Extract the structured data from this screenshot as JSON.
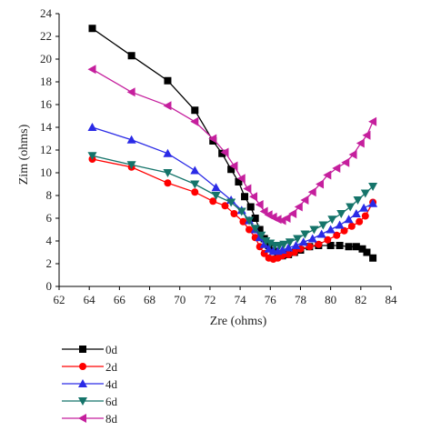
{
  "chart_data": {
    "type": "line",
    "xlabel": "Zre (ohms)",
    "ylabel": "Zim (ohms)",
    "xlim": [
      62,
      84
    ],
    "ylim": [
      0,
      24
    ],
    "xticks": [
      62,
      64,
      66,
      68,
      70,
      72,
      74,
      76,
      78,
      80,
      82,
      84
    ],
    "yticks": [
      0,
      2,
      4,
      6,
      8,
      10,
      12,
      14,
      16,
      18,
      20,
      22,
      24
    ],
    "grid": false,
    "legend_position": "bottom-left",
    "series": [
      {
        "name": "0d",
        "color": "#000000",
        "marker": "square",
        "points": [
          [
            64.2,
            22.7
          ],
          [
            66.8,
            20.3
          ],
          [
            69.2,
            18.1
          ],
          [
            71.0,
            15.5
          ],
          [
            72.2,
            12.8
          ],
          [
            72.8,
            11.7
          ],
          [
            73.4,
            10.3
          ],
          [
            73.9,
            9.2
          ],
          [
            74.3,
            7.9
          ],
          [
            74.7,
            7.0
          ],
          [
            75.0,
            6.0
          ],
          [
            75.3,
            5.0
          ],
          [
            75.6,
            4.2
          ],
          [
            75.9,
            3.6
          ],
          [
            76.2,
            3.1
          ],
          [
            76.5,
            2.8
          ],
          [
            76.8,
            2.7
          ],
          [
            77.2,
            2.8
          ],
          [
            77.6,
            3.0
          ],
          [
            78.0,
            3.2
          ],
          [
            78.6,
            3.5
          ],
          [
            79.2,
            3.6
          ],
          [
            80.0,
            3.6
          ],
          [
            80.6,
            3.6
          ],
          [
            81.2,
            3.5
          ],
          [
            81.7,
            3.5
          ],
          [
            82.1,
            3.3
          ],
          [
            82.4,
            3.0
          ],
          [
            82.8,
            2.5
          ]
        ]
      },
      {
        "name": "2d",
        "color": "#ff0000",
        "marker": "circle",
        "points": [
          [
            64.2,
            11.2
          ],
          [
            66.8,
            10.5
          ],
          [
            69.2,
            9.1
          ],
          [
            71.0,
            8.3
          ],
          [
            72.2,
            7.5
          ],
          [
            73.0,
            7.1
          ],
          [
            73.6,
            6.4
          ],
          [
            74.2,
            5.7
          ],
          [
            74.6,
            5.0
          ],
          [
            75.0,
            4.3
          ],
          [
            75.3,
            3.5
          ],
          [
            75.6,
            2.9
          ],
          [
            75.9,
            2.5
          ],
          [
            76.2,
            2.4
          ],
          [
            76.5,
            2.5
          ],
          [
            76.8,
            2.7
          ],
          [
            77.2,
            2.8
          ],
          [
            77.6,
            3.0
          ],
          [
            78.0,
            3.3
          ],
          [
            78.6,
            3.5
          ],
          [
            79.2,
            3.7
          ],
          [
            79.8,
            4.1
          ],
          [
            80.4,
            4.5
          ],
          [
            80.9,
            4.9
          ],
          [
            81.4,
            5.3
          ],
          [
            81.9,
            5.7
          ],
          [
            82.3,
            6.2
          ],
          [
            82.8,
            7.4
          ]
        ]
      },
      {
        "name": "4d",
        "color": "#2a2ae6",
        "marker": "triangle-up",
        "points": [
          [
            64.2,
            14.0
          ],
          [
            66.8,
            12.9
          ],
          [
            69.2,
            11.7
          ],
          [
            71.0,
            10.2
          ],
          [
            72.4,
            8.7
          ],
          [
            73.4,
            7.6
          ],
          [
            74.1,
            6.7
          ],
          [
            74.6,
            5.8
          ],
          [
            75.0,
            5.0
          ],
          [
            75.3,
            4.3
          ],
          [
            75.6,
            3.7
          ],
          [
            75.9,
            3.3
          ],
          [
            76.2,
            3.1
          ],
          [
            76.5,
            3.1
          ],
          [
            76.8,
            3.2
          ],
          [
            77.2,
            3.4
          ],
          [
            77.7,
            3.6
          ],
          [
            78.2,
            3.9
          ],
          [
            78.8,
            4.2
          ],
          [
            79.4,
            4.6
          ],
          [
            80.0,
            5.0
          ],
          [
            80.6,
            5.4
          ],
          [
            81.2,
            5.9
          ],
          [
            81.7,
            6.4
          ],
          [
            82.2,
            6.9
          ],
          [
            82.8,
            7.3
          ]
        ]
      },
      {
        "name": "6d",
        "color": "#15746a",
        "marker": "triangle-down",
        "points": [
          [
            64.2,
            11.5
          ],
          [
            66.8,
            10.7
          ],
          [
            69.2,
            10.0
          ],
          [
            71.0,
            9.0
          ],
          [
            72.4,
            8.0
          ],
          [
            73.4,
            7.4
          ],
          [
            74.1,
            6.6
          ],
          [
            74.6,
            5.8
          ],
          [
            75.0,
            5.1
          ],
          [
            75.4,
            4.5
          ],
          [
            75.7,
            4.0
          ],
          [
            76.0,
            3.8
          ],
          [
            76.3,
            3.6
          ],
          [
            76.6,
            3.6
          ],
          [
            76.9,
            3.7
          ],
          [
            77.3,
            3.9
          ],
          [
            77.8,
            4.2
          ],
          [
            78.3,
            4.6
          ],
          [
            78.9,
            5.0
          ],
          [
            79.5,
            5.4
          ],
          [
            80.1,
            5.9
          ],
          [
            80.7,
            6.4
          ],
          [
            81.3,
            7.0
          ],
          [
            81.8,
            7.6
          ],
          [
            82.3,
            8.2
          ],
          [
            82.8,
            8.8
          ]
        ]
      },
      {
        "name": "8d",
        "color": "#c51f9d",
        "marker": "triangle-left",
        "points": [
          [
            64.2,
            19.1
          ],
          [
            66.8,
            17.1
          ],
          [
            69.2,
            15.9
          ],
          [
            71.0,
            14.5
          ],
          [
            72.2,
            13.0
          ],
          [
            73.0,
            11.8
          ],
          [
            73.6,
            10.6
          ],
          [
            74.1,
            9.5
          ],
          [
            74.5,
            8.6
          ],
          [
            74.9,
            7.9
          ],
          [
            75.3,
            7.2
          ],
          [
            75.6,
            6.6
          ],
          [
            75.9,
            6.3
          ],
          [
            76.2,
            6.1
          ],
          [
            76.5,
            5.9
          ],
          [
            76.8,
            5.8
          ],
          [
            77.1,
            6.0
          ],
          [
            77.5,
            6.4
          ],
          [
            77.9,
            7.0
          ],
          [
            78.3,
            7.6
          ],
          [
            78.8,
            8.3
          ],
          [
            79.3,
            9.0
          ],
          [
            79.8,
            9.8
          ],
          [
            80.4,
            10.4
          ],
          [
            81.0,
            10.9
          ],
          [
            81.5,
            11.6
          ],
          [
            82.0,
            12.6
          ],
          [
            82.4,
            13.3
          ],
          [
            82.8,
            14.5
          ]
        ]
      }
    ]
  }
}
